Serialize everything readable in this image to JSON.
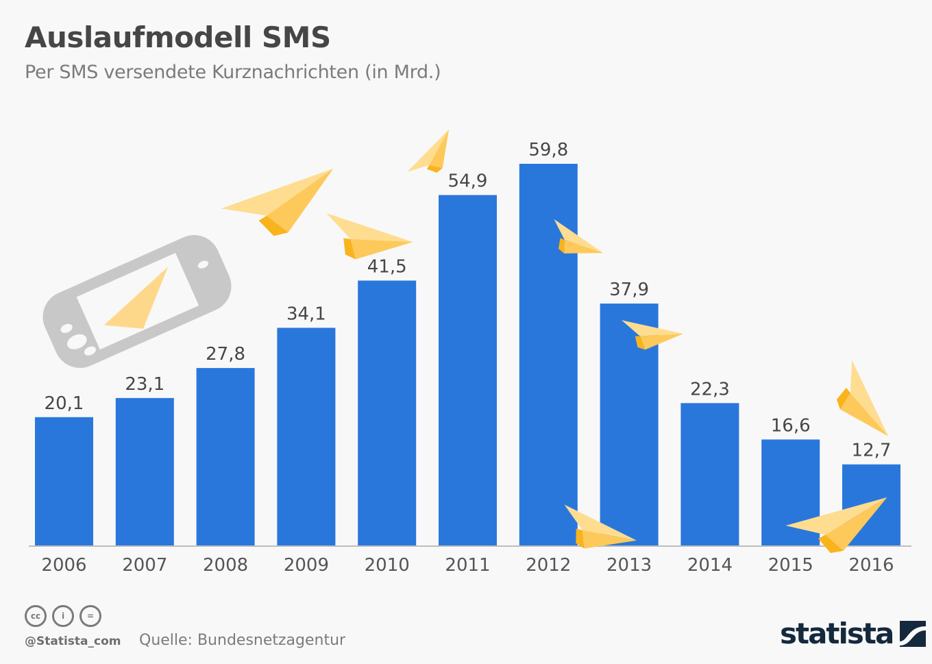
{
  "header": {
    "title": "Auslaufmodell SMS",
    "subtitle": "Per SMS versendete Kurznachrichten (in Mrd.)"
  },
  "footer": {
    "handle": "@Statista_com",
    "source": "Quelle: Bundesnetzagentur",
    "logo_text": "statista",
    "license_icons": [
      "cc-icon",
      "by-icon",
      "nd-icon"
    ],
    "license_labels": [
      "cc",
      "i",
      "="
    ]
  },
  "colors": {
    "bar": "#2a77dc",
    "plane_light": "#fedd91",
    "plane_mid": "#fdc95a",
    "plane_dark": "#f9b31c",
    "phone": "#c8c8c8",
    "axis": "#bdbdbd",
    "logo": "#15293d"
  },
  "decorations": [
    "phone-illustration",
    "paper-plane-icons"
  ],
  "chart_data": {
    "type": "bar",
    "title": "Auslaufmodell SMS",
    "subtitle": "Per SMS versendete Kurznachrichten (in Mrd.)",
    "xlabel": "",
    "ylabel": "Kurznachrichten (in Mrd.)",
    "categories": [
      "2006",
      "2007",
      "2008",
      "2009",
      "2010",
      "2011",
      "2012",
      "2013",
      "2014",
      "2015",
      "2016"
    ],
    "values": [
      20.1,
      23.1,
      27.8,
      34.1,
      41.5,
      54.9,
      59.8,
      37.9,
      22.3,
      16.6,
      12.7
    ],
    "value_labels": [
      "20,1",
      "23,1",
      "27,8",
      "34,1",
      "41,5",
      "54,9",
      "59,8",
      "37,9",
      "22,3",
      "16,6",
      "12,7"
    ],
    "ylim": [
      0,
      60
    ],
    "grid": false,
    "legend": "none",
    "source": "Bundesnetzagentur"
  }
}
